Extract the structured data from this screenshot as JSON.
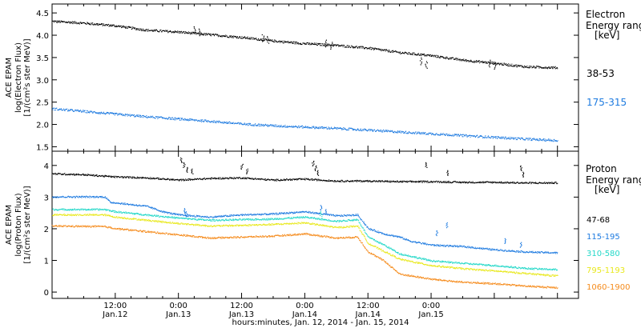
{
  "chart_data": [
    {
      "type": "scatter",
      "panel": "electron",
      "ylabel_lines": [
        "ACE EPAM",
        "log(Electron Flux)",
        "[1/(cm²s ster MeV)]"
      ],
      "ylim": [
        1.4,
        4.7
      ],
      "yticks": [
        "1.5",
        "2.0",
        "2.5",
        "3.0",
        "3.5",
        "4.0",
        "4.5"
      ],
      "ytick_values": [
        1.5,
        2.0,
        2.5,
        3.0,
        3.5,
        4.0,
        4.5
      ],
      "legend_title": [
        "Electron",
        "Energy range",
        "[keV]"
      ],
      "series": [
        {
          "name": "38-53",
          "color": "#000000",
          "points": [
            [
              0,
              4.32
            ],
            [
              6,
              4.28
            ],
            [
              12,
              4.22
            ],
            [
              18,
              4.12
            ],
            [
              24,
              4.08
            ],
            [
              30,
              4.02
            ],
            [
              36,
              3.96
            ],
            [
              42,
              3.88
            ],
            [
              48,
              3.82
            ],
            [
              54,
              3.78
            ],
            [
              60,
              3.72
            ],
            [
              66,
              3.62
            ],
            [
              72,
              3.55
            ],
            [
              78,
              3.45
            ],
            [
              84,
              3.38
            ],
            [
              90,
              3.3
            ],
            [
              96,
              3.28
            ]
          ],
          "spikes": [
            [
              27,
              4.2
            ],
            [
              28,
              4.15
            ],
            [
              40,
              4.02
            ],
            [
              41,
              3.98
            ],
            [
              52,
              3.9
            ],
            [
              53,
              3.85
            ],
            [
              70,
              3.5
            ],
            [
              71,
              3.42
            ],
            [
              83,
              3.45
            ],
            [
              84,
              3.4
            ]
          ]
        },
        {
          "name": "175-315",
          "color": "#1e7be0",
          "points": [
            [
              0,
              2.36
            ],
            [
              6,
              2.3
            ],
            [
              12,
              2.24
            ],
            [
              18,
              2.18
            ],
            [
              24,
              2.13
            ],
            [
              30,
              2.08
            ],
            [
              36,
              2.02
            ],
            [
              42,
              1.98
            ],
            [
              48,
              1.95
            ],
            [
              54,
              1.92
            ],
            [
              60,
              1.88
            ],
            [
              66,
              1.84
            ],
            [
              72,
              1.8
            ],
            [
              78,
              1.76
            ],
            [
              84,
              1.72
            ],
            [
              90,
              1.68
            ],
            [
              96,
              1.65
            ]
          ],
          "spikes": []
        }
      ]
    },
    {
      "type": "scatter",
      "panel": "proton",
      "ylabel_lines": [
        "ACE EPAM",
        "log(Proton Flux)",
        "[1/(cm²s ster MeV)]"
      ],
      "ylim": [
        -0.2,
        4.45
      ],
      "yticks": [
        "0",
        "1",
        "2",
        "3",
        "4"
      ],
      "ytick_values": [
        0,
        1,
        2,
        3,
        4
      ],
      "legend_title": [
        "Proton",
        "Energy range",
        "[keV]"
      ],
      "series": [
        {
          "name": "47-68",
          "color": "#000000",
          "points": [
            [
              0,
              3.75
            ],
            [
              6,
              3.72
            ],
            [
              12,
              3.65
            ],
            [
              18,
              3.62
            ],
            [
              24,
              3.55
            ],
            [
              30,
              3.6
            ],
            [
              36,
              3.62
            ],
            [
              42,
              3.55
            ],
            [
              48,
              3.58
            ],
            [
              54,
              3.52
            ],
            [
              60,
              3.52
            ],
            [
              66,
              3.5
            ],
            [
              72,
              3.5
            ],
            [
              78,
              3.48
            ],
            [
              84,
              3.48
            ],
            [
              90,
              3.46
            ],
            [
              96,
              3.46
            ]
          ],
          "spikes": [
            [
              24.5,
              4.25
            ],
            [
              25,
              4.1
            ],
            [
              25.5,
              3.95
            ],
            [
              26.5,
              3.9
            ],
            [
              36,
              4.05
            ],
            [
              37,
              3.9
            ],
            [
              49.5,
              4.15
            ],
            [
              50,
              4.0
            ],
            [
              50.5,
              3.85
            ],
            [
              71,
              4.1
            ],
            [
              75,
              3.85
            ],
            [
              89,
              4.0
            ],
            [
              89.5,
              3.8
            ]
          ]
        },
        {
          "name": "115-195",
          "color": "#1e7be0",
          "points": [
            [
              0,
              3.02
            ],
            [
              10,
              3.02
            ],
            [
              11,
              2.85
            ],
            [
              18,
              2.72
            ],
            [
              21,
              2.55
            ],
            [
              24,
              2.45
            ],
            [
              30,
              2.38
            ],
            [
              36,
              2.45
            ],
            [
              42,
              2.48
            ],
            [
              48,
              2.55
            ],
            [
              54,
              2.42
            ],
            [
              58,
              2.45
            ],
            [
              60,
              2.02
            ],
            [
              63,
              1.85
            ],
            [
              66,
              1.75
            ],
            [
              68,
              1.62
            ],
            [
              72,
              1.5
            ],
            [
              78,
              1.45
            ],
            [
              84,
              1.35
            ],
            [
              90,
              1.28
            ],
            [
              96,
              1.25
            ]
          ],
          "spikes": [
            [
              25,
              2.65
            ],
            [
              25.5,
              2.55
            ],
            [
              51,
              2.75
            ],
            [
              52,
              2.62
            ],
            [
              75,
              2.2
            ],
            [
              73,
              1.95
            ],
            [
              86,
              1.7
            ],
            [
              89,
              1.58
            ]
          ]
        },
        {
          "name": "310-580",
          "color": "#22d8c8",
          "points": [
            [
              0,
              2.62
            ],
            [
              10,
              2.62
            ],
            [
              12,
              2.55
            ],
            [
              18,
              2.45
            ],
            [
              24,
              2.35
            ],
            [
              30,
              2.28
            ],
            [
              36,
              2.3
            ],
            [
              42,
              2.32
            ],
            [
              48,
              2.38
            ],
            [
              54,
              2.25
            ],
            [
              58,
              2.3
            ],
            [
              60,
              1.75
            ],
            [
              63,
              1.5
            ],
            [
              66,
              1.22
            ],
            [
              72,
              1.0
            ],
            [
              78,
              0.92
            ],
            [
              84,
              0.85
            ],
            [
              90,
              0.76
            ],
            [
              96,
              0.72
            ]
          ],
          "spikes": [
            [
              51,
              2.55
            ]
          ]
        },
        {
          "name": "795-1193",
          "color": "#e8e81c",
          "points": [
            [
              0,
              2.45
            ],
            [
              10,
              2.45
            ],
            [
              12,
              2.38
            ],
            [
              18,
              2.28
            ],
            [
              24,
              2.18
            ],
            [
              30,
              2.1
            ],
            [
              36,
              2.12
            ],
            [
              42,
              2.15
            ],
            [
              48,
              2.2
            ],
            [
              54,
              2.05
            ],
            [
              58,
              2.1
            ],
            [
              60,
              1.55
            ],
            [
              63,
              1.3
            ],
            [
              66,
              1.05
            ],
            [
              72,
              0.85
            ],
            [
              78,
              0.75
            ],
            [
              84,
              0.68
            ],
            [
              90,
              0.6
            ],
            [
              96,
              0.52
            ]
          ],
          "spikes": []
        },
        {
          "name": "1060-1900",
          "color": "#f58b1c",
          "points": [
            [
              0,
              2.1
            ],
            [
              10,
              2.08
            ],
            [
              12,
              2.02
            ],
            [
              18,
              1.92
            ],
            [
              24,
              1.82
            ],
            [
              30,
              1.72
            ],
            [
              36,
              1.75
            ],
            [
              42,
              1.78
            ],
            [
              48,
              1.85
            ],
            [
              54,
              1.72
            ],
            [
              58,
              1.75
            ],
            [
              60,
              1.28
            ],
            [
              63,
              1.0
            ],
            [
              66,
              0.58
            ],
            [
              72,
              0.42
            ],
            [
              78,
              0.32
            ],
            [
              84,
              0.28
            ],
            [
              90,
              0.2
            ],
            [
              96,
              0.15
            ]
          ],
          "spikes": []
        }
      ]
    }
  ],
  "xaxis": {
    "range": [
      0,
      100
    ],
    "major_ticks": [
      {
        "t": 12,
        "time": "12:00",
        "date": "Jan.12"
      },
      {
        "t": 24,
        "time": "0:00",
        "date": "Jan.13"
      },
      {
        "t": 36,
        "time": "12:00",
        "date": "Jan.13"
      },
      {
        "t": 48,
        "time": "0:00",
        "date": "Jan.14"
      },
      {
        "t": 60,
        "time": "12:00",
        "date": "Jan.14"
      },
      {
        "t": 72,
        "time": "0:00",
        "date": "Jan.15"
      }
    ],
    "xlabel": "hours:minutes, Jan. 12, 2014 - Jan. 15, 2014"
  }
}
